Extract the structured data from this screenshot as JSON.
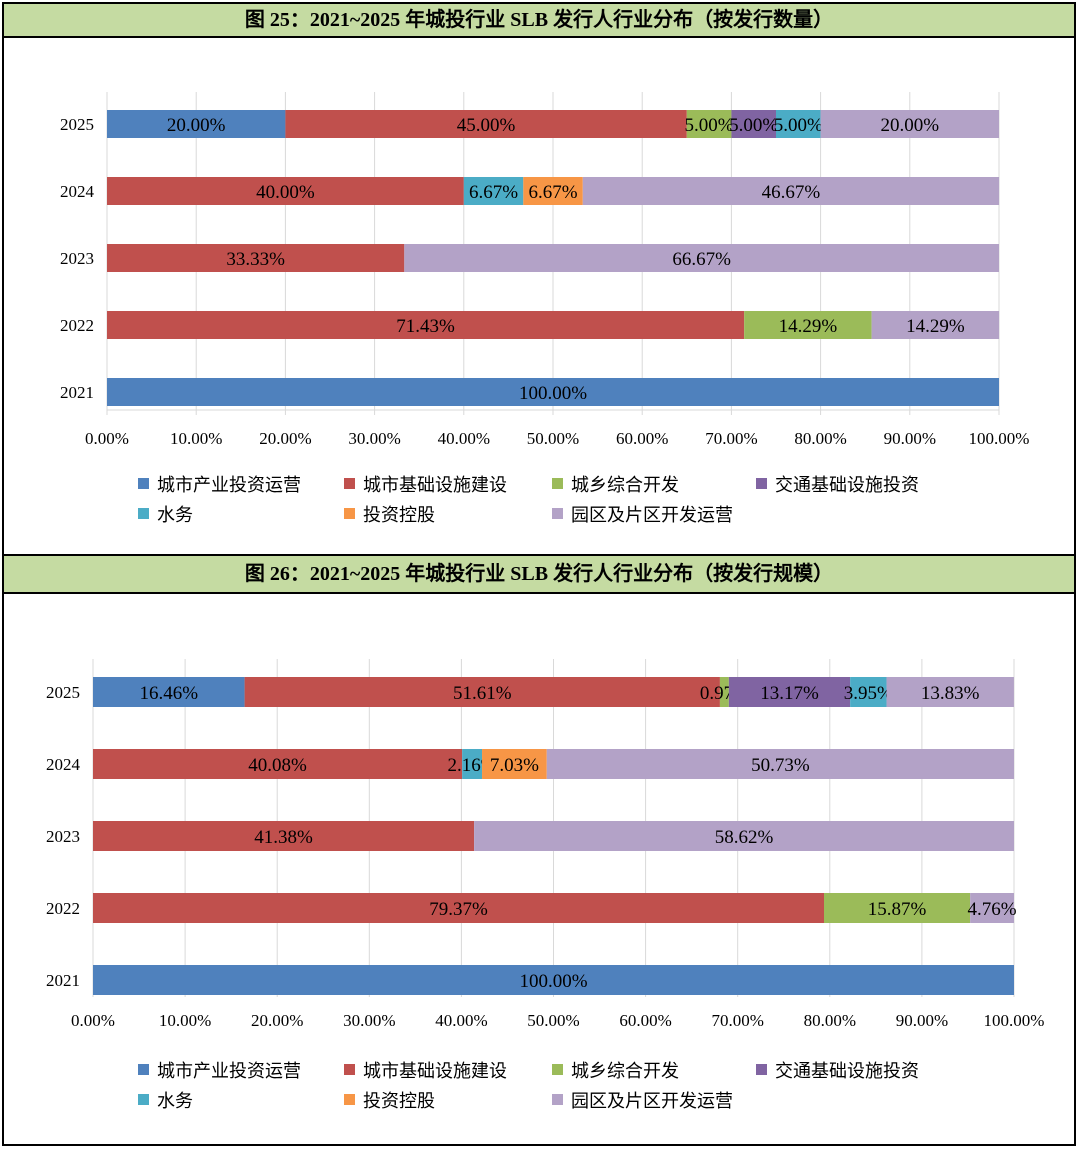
{
  "chart_data": [
    {
      "type": "bar",
      "orientation": "horizontal",
      "stacked": true,
      "title": "图 25：2021~2025 年城投行业 SLB 发行人行业分布（按发行数量）",
      "categories": [
        "2021",
        "2022",
        "2023",
        "2024",
        "2025"
      ],
      "xlim": [
        0,
        100
      ],
      "xticks": [
        "0.00%",
        "10.00%",
        "20.00%",
        "30.00%",
        "40.00%",
        "50.00%",
        "60.00%",
        "70.00%",
        "80.00%",
        "90.00%",
        "100.00%"
      ],
      "grid": "vertical",
      "legend_position": "bottom",
      "series": [
        {
          "name": "城市产业投资运营",
          "color": "#4f81bd",
          "values": [
            100.0,
            0,
            0,
            0,
            20.0
          ],
          "labels": [
            "100.00%",
            "",
            "",
            "",
            "20.00%"
          ]
        },
        {
          "name": "城市基础设施建设",
          "color": "#c0504d",
          "values": [
            0,
            71.43,
            33.33,
            40.0,
            45.0
          ],
          "labels": [
            "",
            "71.43%",
            "33.33%",
            "40.00%",
            "45.00%"
          ]
        },
        {
          "name": "城乡综合开发",
          "color": "#9bbb59",
          "values": [
            0,
            14.29,
            0,
            0,
            5.0
          ],
          "labels": [
            "",
            "14.29%",
            "",
            "",
            "5.00%"
          ]
        },
        {
          "name": "交通基础设施投资",
          "color": "#8064a2",
          "values": [
            0,
            0,
            0,
            0,
            5.0
          ],
          "labels": [
            "",
            "",
            "",
            "",
            "5.00%"
          ]
        },
        {
          "name": "水务",
          "color": "#4bacc6",
          "values": [
            0,
            0,
            0,
            6.67,
            5.0
          ],
          "labels": [
            "",
            "",
            "",
            "6.67%",
            "5.00%"
          ]
        },
        {
          "name": "投资控股",
          "color": "#f79646",
          "values": [
            0,
            0,
            0,
            6.67,
            0
          ],
          "labels": [
            "",
            "",
            "",
            "6.67%",
            ""
          ]
        },
        {
          "name": "园区及片区开发运营",
          "color": "#b3a2c7",
          "values": [
            0,
            14.29,
            66.67,
            46.67,
            20.0
          ],
          "labels": [
            "",
            "14.29%",
            "66.67%",
            "46.67%",
            "20.00%"
          ]
        }
      ]
    },
    {
      "type": "bar",
      "orientation": "horizontal",
      "stacked": true,
      "title": "图 26：2021~2025 年城投行业 SLB 发行人行业分布（按发行规模）",
      "categories": [
        "2021",
        "2022",
        "2023",
        "2024",
        "2025"
      ],
      "xlim": [
        0,
        100
      ],
      "xticks": [
        "0.00%",
        "10.00%",
        "20.00%",
        "30.00%",
        "40.00%",
        "50.00%",
        "60.00%",
        "70.00%",
        "80.00%",
        "90.00%",
        "100.00%"
      ],
      "grid": "vertical",
      "legend_position": "bottom",
      "series": [
        {
          "name": "城市产业投资运营",
          "color": "#4f81bd",
          "values": [
            100.0,
            0,
            0,
            0,
            16.46
          ],
          "labels": [
            "100.00%",
            "",
            "",
            "",
            "16.46%"
          ]
        },
        {
          "name": "城市基础设施建设",
          "color": "#c0504d",
          "values": [
            0,
            79.37,
            41.38,
            40.08,
            51.61
          ],
          "labels": [
            "",
            "79.37%",
            "41.38%",
            "40.08%",
            "51.61%"
          ]
        },
        {
          "name": "城乡综合开发",
          "color": "#9bbb59",
          "values": [
            0,
            15.87,
            0,
            0,
            0.97
          ],
          "labels": [
            "",
            "15.87%",
            "",
            "",
            "0.97%"
          ]
        },
        {
          "name": "交通基础设施投资",
          "color": "#8064a2",
          "values": [
            0,
            0,
            0,
            0,
            13.17
          ],
          "labels": [
            "",
            "",
            "",
            "",
            "13.17%"
          ]
        },
        {
          "name": "水务",
          "color": "#4bacc6",
          "values": [
            0,
            0,
            0,
            2.16,
            3.95
          ],
          "labels": [
            "",
            "",
            "",
            "2.16%",
            "3.95%"
          ]
        },
        {
          "name": "投资控股",
          "color": "#f79646",
          "values": [
            0,
            0,
            0,
            7.03,
            0
          ],
          "labels": [
            "",
            "",
            "",
            "7.03%",
            ""
          ]
        },
        {
          "name": "园区及片区开发运营",
          "color": "#b3a2c7",
          "values": [
            0,
            4.76,
            58.62,
            50.73,
            13.83
          ],
          "labels": [
            "",
            "4.76%",
            "58.62%",
            "50.73%",
            "13.83%"
          ]
        }
      ]
    }
  ]
}
